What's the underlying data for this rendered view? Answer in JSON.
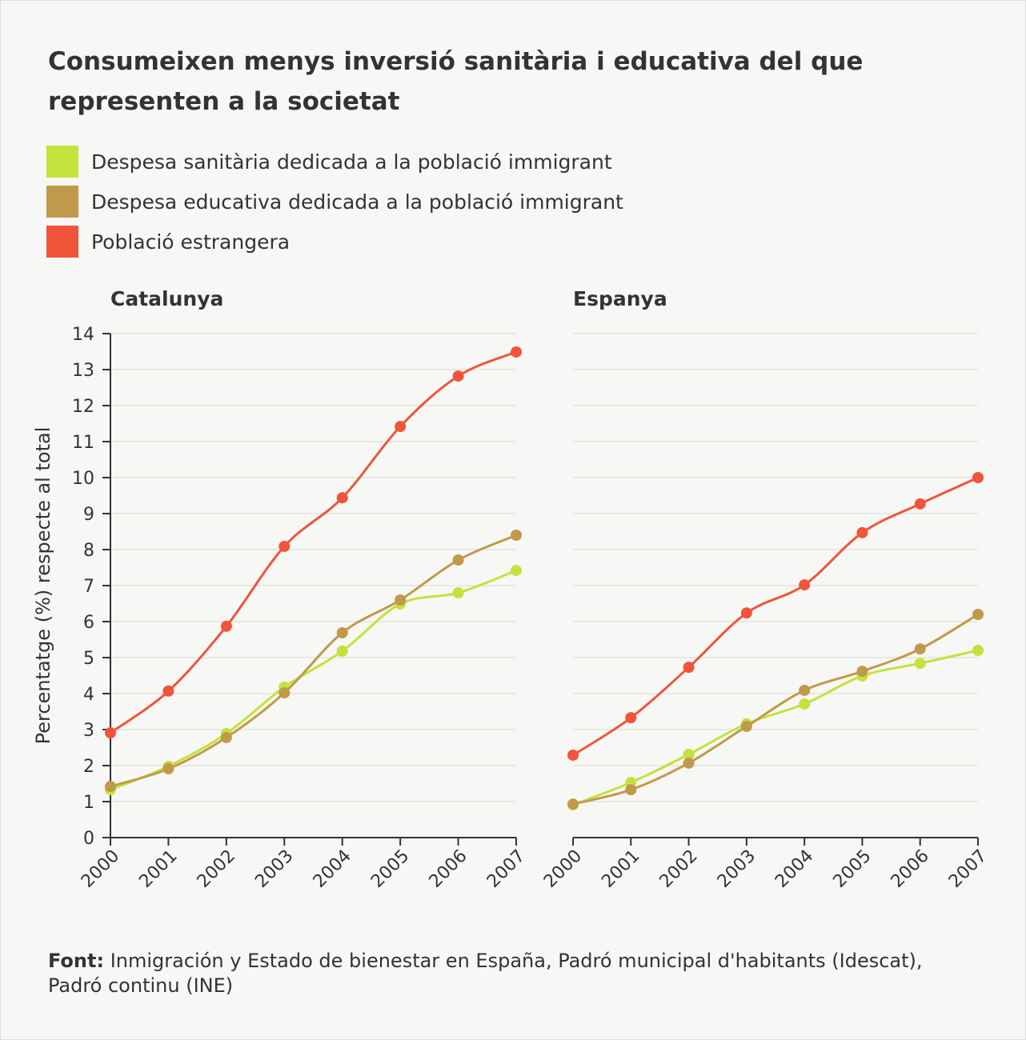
{
  "title": "Consumeixen menys inversió sanitària i educativa del que representen a la societat",
  "legend": [
    {
      "label": "Despesa sanitària dedicada a la població immigrant",
      "color": "#c3e23e"
    },
    {
      "label": "Despesa educativa dedicada a la població immigrant",
      "color": "#c09a4a"
    },
    {
      "label": "Població estrangera",
      "color": "#f0553a"
    }
  ],
  "source": {
    "label": "Font:",
    "text": "Inmigración y Estado de bienestar en España, Padró municipal d'habitants (Idescat), Padró continu (INE)"
  },
  "chart_data": [
    {
      "type": "line",
      "title": "Catalunya",
      "ylabel": "Percentatge (%) respecte al total",
      "ylim": [
        0,
        14
      ],
      "yticks": [
        0,
        1,
        2,
        3,
        4,
        5,
        6,
        7,
        8,
        9,
        10,
        11,
        12,
        13,
        14
      ],
      "x": [
        "2000",
        "2001",
        "2002",
        "2003",
        "2004",
        "2005",
        "2006",
        "2007"
      ],
      "grid": true,
      "series": [
        {
          "name": "Despesa sanitària dedicada a la població immigrant",
          "color": "#c3e23e",
          "values": [
            1.33,
            1.98,
            2.89,
            4.18,
            5.18,
            6.49,
            6.8,
            7.42
          ]
        },
        {
          "name": "Despesa educativa dedicada a la població immigrant",
          "color": "#c09a4a",
          "values": [
            1.42,
            1.91,
            2.78,
            4.02,
            5.69,
            6.6,
            7.71,
            8.4
          ]
        },
        {
          "name": "Població estrangera",
          "color": "#f0553a",
          "values": [
            2.91,
            4.07,
            5.87,
            8.09,
            9.44,
            11.42,
            12.82,
            13.49
          ]
        }
      ]
    },
    {
      "type": "line",
      "title": "Espanya",
      "ylim": [
        0,
        14
      ],
      "x": [
        "2000",
        "2001",
        "2002",
        "2003",
        "2004",
        "2005",
        "2006",
        "2007"
      ],
      "grid": true,
      "series": [
        {
          "name": "Despesa sanitària dedicada a la població immigrant",
          "color": "#c3e23e",
          "values": [
            0.91,
            1.53,
            2.31,
            3.16,
            3.71,
            4.49,
            4.84,
            5.2
          ]
        },
        {
          "name": "Despesa educativa dedicada a la població immigrant",
          "color": "#c09a4a",
          "values": [
            0.93,
            1.33,
            2.07,
            3.09,
            4.09,
            4.62,
            5.24,
            6.2
          ]
        },
        {
          "name": "Població estrangera",
          "color": "#f0553a",
          "values": [
            2.29,
            3.33,
            4.73,
            6.24,
            7.02,
            8.47,
            9.27,
            10.0
          ]
        }
      ]
    }
  ]
}
